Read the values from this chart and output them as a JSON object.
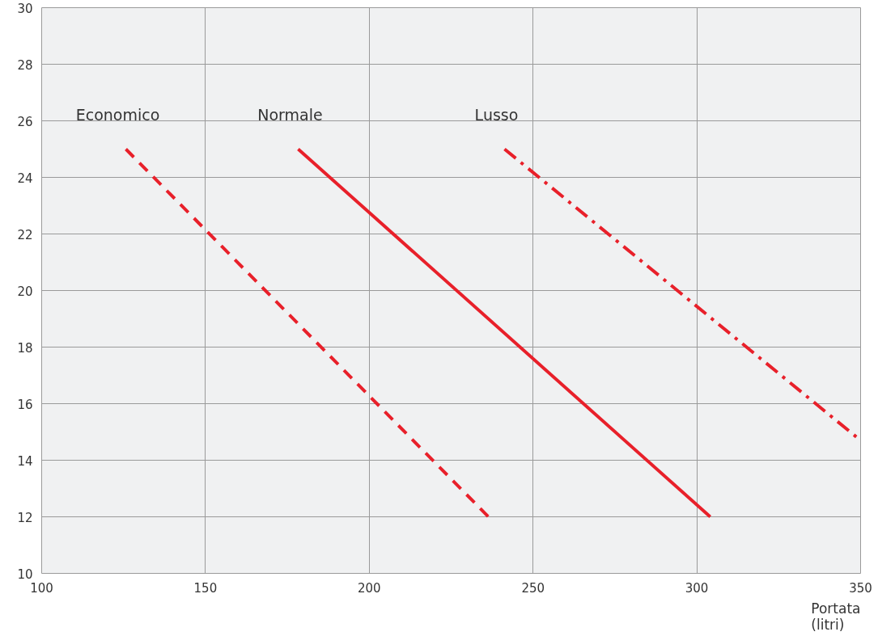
{
  "chart_data": {
    "type": "line",
    "xlabel": "Portata (litri)",
    "xlim": [
      100,
      350
    ],
    "ylim": [
      10,
      30
    ],
    "xticks": [
      100,
      150,
      200,
      250,
      300,
      350
    ],
    "yticks": [
      10,
      12,
      14,
      16,
      18,
      20,
      22,
      24,
      26,
      28,
      30
    ],
    "grid": true,
    "series": [
      {
        "name": "Economico",
        "color": "#e8202a",
        "line_style": "dashed",
        "x": [
          125.7,
          236.4
        ],
        "values": [
          25,
          12
        ]
      },
      {
        "name": "Normale",
        "color": "#e8202a",
        "line_style": "solid",
        "x": [
          178.3,
          304.1
        ],
        "values": [
          25,
          12
        ]
      },
      {
        "name": "Lusso",
        "color": "#e8202a",
        "line_style": "dashdot",
        "x": [
          241.3,
          350
        ],
        "values": [
          25,
          14.7
        ]
      }
    ]
  }
}
